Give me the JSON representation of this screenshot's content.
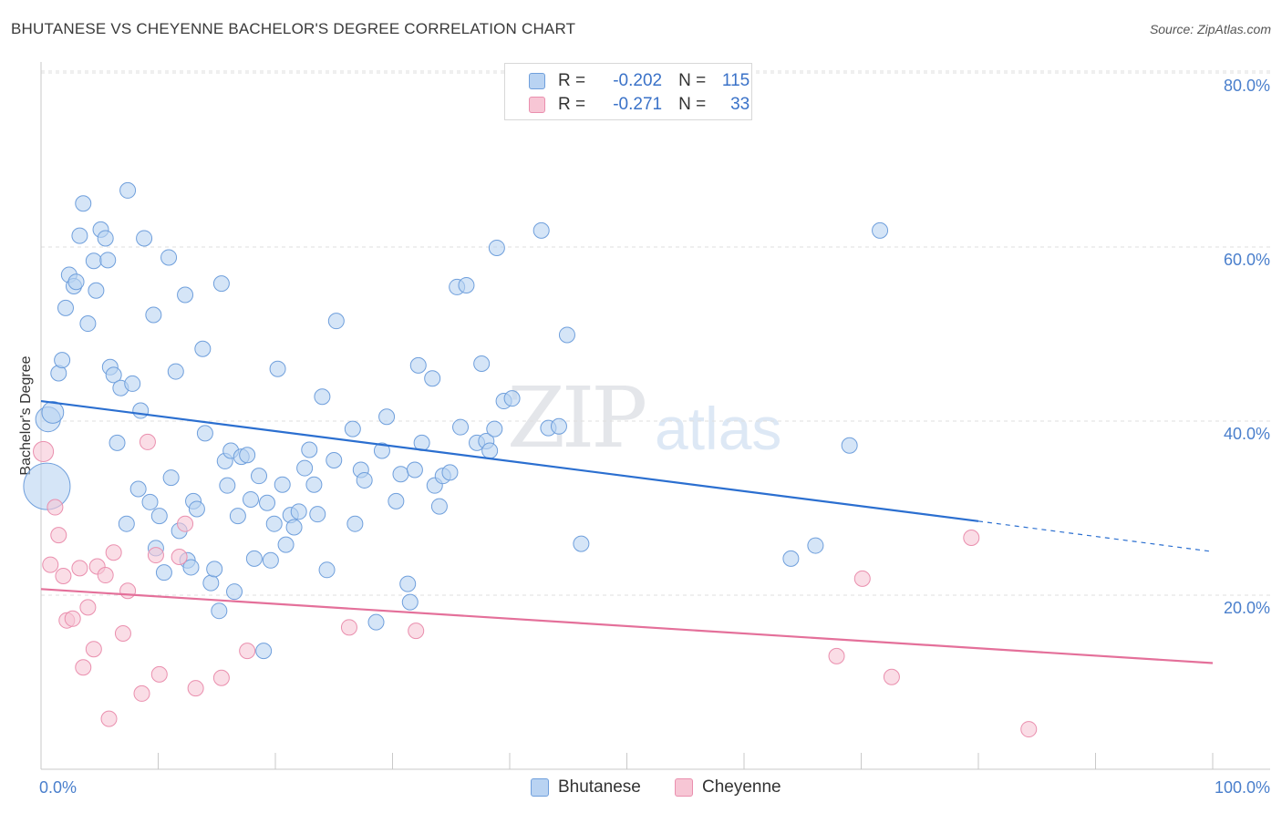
{
  "title": "BHUTANESE VS CHEYENNE BACHELOR'S DEGREE CORRELATION CHART",
  "source": "Source: ZipAtlas.com",
  "watermark": {
    "zip": "ZIP",
    "atlas": "atlas"
  },
  "colors": {
    "blue_fill": "#b9d3f2",
    "blue_stroke": "#6f9fdc",
    "blue_line": "#2b6fd0",
    "pink_fill": "#f7c6d5",
    "pink_stroke": "#ea8fae",
    "pink_line": "#e4709a",
    "grid": "#dfdfdf",
    "tick_text": "#4a7fcc"
  },
  "legend": {
    "rows": [
      {
        "r_label": "R =",
        "r_value": "-0.202",
        "n_label": "N =",
        "n_value": "115"
      },
      {
        "r_label": "R =",
        "r_value": "-0.271",
        "n_label": "N =",
        "n_value": "33"
      }
    ]
  },
  "bottom_legend": {
    "series_a": "Bhutanese",
    "series_b": "Cheyenne"
  },
  "chart_data": {
    "type": "scatter",
    "title": "BHUTANESE VS CHEYENNE BACHELOR'S DEGREE CORRELATION CHART",
    "xlabel": "",
    "ylabel": "Bachelor's Degree",
    "xlim": [
      0,
      100
    ],
    "ylim": [
      0,
      83
    ],
    "x_tick_labels": [
      "0.0%",
      "100.0%"
    ],
    "y_ticks": [
      20,
      40,
      60,
      80
    ],
    "y_tick_labels": [
      "20.0%",
      "40.0%",
      "60.0%",
      "80.0%"
    ],
    "grid": true,
    "series": [
      {
        "name": "Bhutanese",
        "r": -0.202,
        "n": 115,
        "trend": {
          "x0": 0,
          "y0": 42.3,
          "x1": 80,
          "y1": 28.5,
          "dash_to_x": 100,
          "dash_to_y": 25.0
        },
        "points": [
          [
            0.5,
            32.5,
            3
          ],
          [
            0.6,
            40.2,
            1.6
          ],
          [
            1.0,
            41.0,
            1.4
          ],
          [
            1.5,
            45.5,
            1
          ],
          [
            1.8,
            47.0,
            1
          ],
          [
            2.1,
            53.0,
            1
          ],
          [
            2.4,
            56.8,
            1
          ],
          [
            2.8,
            55.5,
            1
          ],
          [
            3.0,
            56.0,
            1
          ],
          [
            3.3,
            61.3,
            1
          ],
          [
            3.6,
            65.0,
            1
          ],
          [
            4.0,
            51.2,
            1
          ],
          [
            4.5,
            58.4,
            1
          ],
          [
            4.7,
            55.0,
            1
          ],
          [
            5.1,
            62.0,
            1
          ],
          [
            5.5,
            61.0,
            1
          ],
          [
            5.7,
            58.5,
            1
          ],
          [
            5.9,
            46.2,
            1
          ],
          [
            6.2,
            45.3,
            1
          ],
          [
            6.5,
            37.5,
            1
          ],
          [
            6.8,
            43.8,
            1
          ],
          [
            7.3,
            28.2,
            1
          ],
          [
            7.4,
            66.5,
            1
          ],
          [
            7.8,
            44.3,
            1
          ],
          [
            8.3,
            32.2,
            1
          ],
          [
            8.5,
            41.2,
            1
          ],
          [
            8.8,
            61.0,
            1
          ],
          [
            9.3,
            30.7,
            1
          ],
          [
            9.6,
            52.2,
            1
          ],
          [
            9.8,
            25.4,
            1
          ],
          [
            10.1,
            29.1,
            1
          ],
          [
            10.5,
            22.6,
            1
          ],
          [
            10.9,
            58.8,
            1
          ],
          [
            11.1,
            33.5,
            1
          ],
          [
            11.5,
            45.7,
            1
          ],
          [
            11.8,
            27.4,
            1
          ],
          [
            12.3,
            54.5,
            1
          ],
          [
            12.5,
            24.0,
            1
          ],
          [
            12.8,
            23.2,
            1
          ],
          [
            13.0,
            30.8,
            1
          ],
          [
            13.3,
            29.9,
            1
          ],
          [
            13.8,
            48.3,
            1
          ],
          [
            14.0,
            38.6,
            1
          ],
          [
            14.5,
            21.4,
            1
          ],
          [
            14.8,
            23.0,
            1
          ],
          [
            15.2,
            18.2,
            1
          ],
          [
            15.4,
            55.8,
            1
          ],
          [
            15.7,
            35.4,
            1
          ],
          [
            15.9,
            32.6,
            1
          ],
          [
            16.2,
            36.6,
            1
          ],
          [
            16.5,
            20.4,
            1
          ],
          [
            16.8,
            29.1,
            1
          ],
          [
            17.1,
            35.9,
            1
          ],
          [
            17.6,
            36.1,
            1
          ],
          [
            17.9,
            31.0,
            1
          ],
          [
            18.2,
            24.2,
            1
          ],
          [
            18.6,
            33.7,
            1
          ],
          [
            19.0,
            13.6,
            1
          ],
          [
            19.3,
            30.6,
            1
          ],
          [
            19.6,
            24.0,
            1
          ],
          [
            19.9,
            28.2,
            1
          ],
          [
            20.2,
            46.0,
            1
          ],
          [
            20.6,
            32.7,
            1
          ],
          [
            20.9,
            25.8,
            1
          ],
          [
            21.3,
            29.2,
            1
          ],
          [
            21.6,
            27.8,
            1
          ],
          [
            22.0,
            29.6,
            1
          ],
          [
            22.5,
            34.6,
            1
          ],
          [
            22.9,
            36.7,
            1
          ],
          [
            23.3,
            32.7,
            1
          ],
          [
            23.6,
            29.3,
            1
          ],
          [
            24.0,
            42.8,
            1
          ],
          [
            24.4,
            22.9,
            1
          ],
          [
            25.0,
            35.5,
            1
          ],
          [
            25.2,
            51.5,
            1
          ],
          [
            26.6,
            39.1,
            1
          ],
          [
            26.8,
            28.2,
            1
          ],
          [
            27.3,
            34.4,
            1
          ],
          [
            27.6,
            33.2,
            1
          ],
          [
            28.6,
            16.9,
            1
          ],
          [
            29.1,
            36.6,
            1
          ],
          [
            29.5,
            40.5,
            1
          ],
          [
            30.3,
            30.8,
            1
          ],
          [
            30.7,
            33.9,
            1
          ],
          [
            31.3,
            21.3,
            1
          ],
          [
            31.5,
            19.2,
            1
          ],
          [
            31.9,
            34.4,
            1
          ],
          [
            32.2,
            46.4,
            1
          ],
          [
            32.5,
            37.5,
            1
          ],
          [
            33.4,
            44.9,
            1
          ],
          [
            33.6,
            32.6,
            1
          ],
          [
            34.0,
            30.2,
            1
          ],
          [
            34.3,
            33.7,
            1
          ],
          [
            34.9,
            34.1,
            1
          ],
          [
            35.5,
            55.4,
            1
          ],
          [
            35.8,
            39.3,
            1
          ],
          [
            36.3,
            55.6,
            1
          ],
          [
            37.2,
            37.5,
            1
          ],
          [
            37.6,
            46.6,
            1
          ],
          [
            38.0,
            37.7,
            1
          ],
          [
            38.3,
            36.6,
            1
          ],
          [
            38.7,
            39.1,
            1
          ],
          [
            38.9,
            59.9,
            1
          ],
          [
            39.5,
            42.3,
            1
          ],
          [
            40.2,
            42.6,
            1
          ],
          [
            42.7,
            61.9,
            1
          ],
          [
            43.3,
            39.2,
            1
          ],
          [
            44.2,
            39.4,
            1
          ],
          [
            44.9,
            49.9,
            1
          ],
          [
            46.1,
            25.9,
            1
          ],
          [
            64.0,
            24.2,
            1
          ],
          [
            66.1,
            25.7,
            1
          ],
          [
            69.0,
            37.2,
            1
          ],
          [
            71.6,
            61.9,
            1
          ]
        ]
      },
      {
        "name": "Cheyenne",
        "r": -0.271,
        "n": 33,
        "trend": {
          "x0": 0,
          "y0": 20.7,
          "x1": 100,
          "y1": 12.2
        },
        "points": [
          [
            0.2,
            36.5,
            1.3
          ],
          [
            0.8,
            23.5,
            1
          ],
          [
            1.2,
            30.1,
            1
          ],
          [
            1.5,
            26.9,
            1
          ],
          [
            1.9,
            22.2,
            1
          ],
          [
            2.2,
            17.1,
            1
          ],
          [
            2.7,
            17.3,
            1
          ],
          [
            3.3,
            23.1,
            1
          ],
          [
            3.6,
            11.7,
            1
          ],
          [
            4.0,
            18.6,
            1
          ],
          [
            4.5,
            13.8,
            1
          ],
          [
            4.8,
            23.3,
            1
          ],
          [
            5.5,
            22.3,
            1
          ],
          [
            5.8,
            5.8,
            1
          ],
          [
            6.2,
            24.9,
            1
          ],
          [
            7.0,
            15.6,
            1
          ],
          [
            7.4,
            20.5,
            1
          ],
          [
            8.6,
            8.7,
            1
          ],
          [
            9.1,
            37.6,
            1
          ],
          [
            9.8,
            24.6,
            1
          ],
          [
            10.1,
            10.9,
            1
          ],
          [
            11.8,
            24.4,
            1
          ],
          [
            12.3,
            28.2,
            1
          ],
          [
            13.2,
            9.3,
            1
          ],
          [
            15.4,
            10.5,
            1
          ],
          [
            17.6,
            13.6,
            1
          ],
          [
            26.3,
            16.3,
            1
          ],
          [
            32.0,
            15.9,
            1
          ],
          [
            67.9,
            13.0,
            1
          ],
          [
            70.1,
            21.9,
            1
          ],
          [
            72.6,
            10.6,
            1
          ],
          [
            79.4,
            26.6,
            1
          ],
          [
            84.3,
            4.6,
            1
          ]
        ]
      }
    ]
  }
}
